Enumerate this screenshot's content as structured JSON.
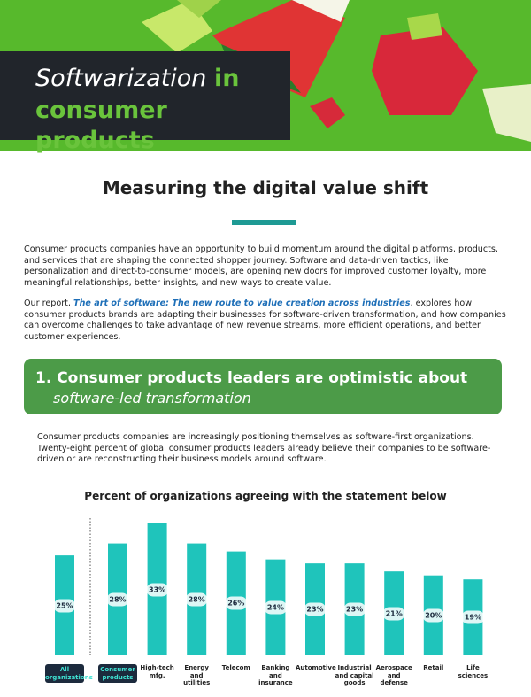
{
  "header": {
    "title_italic": "Softwarization",
    "title_connector": "in",
    "title_line2": "consumer products"
  },
  "section_heading": "Measuring the digital value shift",
  "intro": "Consumer products companies have an opportunity to build momentum around the digital platforms, products, and services that are shaping the connected shopper journey. Software and data-driven tactics, like personalization and direct-to-consumer models, are opening new doors for improved customer loyalty, more meaningful relationships, better insights, and new ways to create value.",
  "report": {
    "lead": "Our report,",
    "link": "The art of software: The new route to value creation across industries",
    "text": ", explores how consumer products brands are adapting their businesses for software-driven transformation, and how companies can overcome challenges to take advantage of new revenue streams, more efficient operations, and better customer experiences."
  },
  "finding": {
    "title": "1. Consumer products leaders are optimistic about",
    "subtitle": "software-led transformation",
    "text": "Consumer products companies are increasingly positioning themselves as software-first organizations. Twenty-eight percent of global consumer products leaders already believe their companies to be software-driven or are reconstructing their business models around software."
  },
  "chart_data": {
    "type": "bar",
    "title": "Percent of organizations agreeing with the statement below",
    "categories": [
      "All\norganizations",
      "Consumer\nproducts",
      "High-tech\nmfg.",
      "Energy\nand\nutilities",
      "Telecom",
      "Banking\nand\ninsurance",
      "Automotive",
      "Industrial\nand capital\ngoods",
      "Aerospace\nand\ndefense",
      "Retail",
      "Life\nsciences"
    ],
    "values": [
      25,
      28,
      33,
      28,
      26,
      24,
      23,
      23,
      21,
      20,
      19
    ],
    "value_labels": [
      "25%",
      "28%",
      "33%",
      "28%",
      "26%",
      "24%",
      "23%",
      "23%",
      "21%",
      "20%",
      "19%"
    ],
    "color": "#1fc4bb",
    "highlight_color": "#1c2a3d"
  }
}
